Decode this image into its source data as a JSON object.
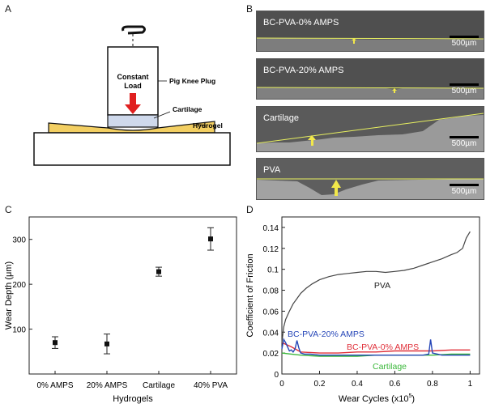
{
  "figure": {
    "panel_letters": {
      "a": "A",
      "b": "B",
      "c": "C",
      "d": "D"
    },
    "colors": {
      "force_arrow": "#e02020",
      "hydrogel": "#f3cf62",
      "cartilage": "#cfd9ec",
      "boundary": "#e8f060",
      "marker_arrow": "#f2e84a",
      "pva": "#444444",
      "bc20": "#2747b8",
      "bc0": "#e0303a",
      "cart": "#3cb83c"
    }
  },
  "panelA": {
    "constant_load": [
      "Constant",
      "Load"
    ],
    "pig_knee_plug": "Pig Knee Plug",
    "cartilage": "Cartilage",
    "hydrogel": "Hydrogel"
  },
  "panelB": {
    "images": [
      {
        "label": "BC-PVA-0% AMPS",
        "scale": "500µm"
      },
      {
        "label": "BC-PVA-20% AMPS",
        "scale": "500µm"
      },
      {
        "label": "Cartilage",
        "scale": "500µm"
      },
      {
        "label": "PVA",
        "scale": "500µm"
      }
    ]
  },
  "chart_data": [
    {
      "type": "scatter",
      "title": "",
      "xlabel": "Hydrogels",
      "ylabel": "Wear Depth (μm)",
      "categories": [
        "0% AMPS",
        "20% AMPS",
        "Cartilage",
        "40% PVA"
      ],
      "values": [
        70,
        67,
        228,
        301
      ],
      "errors": [
        13,
        22,
        10,
        25
      ],
      "ylim": [
        0,
        350
      ],
      "yticks": [
        100,
        200,
        300
      ]
    },
    {
      "type": "line",
      "title": "",
      "xlabel": "Wear Cycles (x10",
      "xlabel_sup": "5",
      "xlabel_end": ")",
      "ylabel": "Coefficient of Friction",
      "xlim": [
        0,
        1.05
      ],
      "ylim": [
        0,
        0.15
      ],
      "xticks": [
        "0",
        "0.2",
        "0.4",
        "0.6",
        "0.8",
        "1"
      ],
      "yticks": [
        "0",
        "0.02",
        "0.04",
        "0.06",
        "0.08",
        "0.1",
        "0.12",
        "0.14"
      ],
      "series": [
        {
          "name": "PVA",
          "color": "#444444",
          "x": [
            0,
            0.01,
            0.02,
            0.04,
            0.06,
            0.08,
            0.1,
            0.13,
            0.16,
            0.2,
            0.25,
            0.3,
            0.35,
            0.4,
            0.45,
            0.5,
            0.55,
            0.6,
            0.65,
            0.7,
            0.75,
            0.8,
            0.85,
            0.9,
            0.93,
            0.96,
            0.98,
            1.0
          ],
          "y": [
            0.03,
            0.045,
            0.052,
            0.06,
            0.067,
            0.072,
            0.077,
            0.082,
            0.086,
            0.09,
            0.093,
            0.095,
            0.096,
            0.097,
            0.098,
            0.098,
            0.097,
            0.098,
            0.099,
            0.101,
            0.104,
            0.107,
            0.11,
            0.114,
            0.116,
            0.12,
            0.13,
            0.136
          ]
        },
        {
          "name": "BC-PVA-20% AMPS",
          "color": "#2747b8",
          "x": [
            0,
            0.01,
            0.02,
            0.03,
            0.04,
            0.05,
            0.06,
            0.07,
            0.08,
            0.09,
            0.1,
            0.12,
            0.15,
            0.2,
            0.3,
            0.4,
            0.5,
            0.6,
            0.7,
            0.75,
            0.78,
            0.79,
            0.8,
            0.85,
            0.9,
            0.95,
            1.0
          ],
          "y": [
            0.024,
            0.033,
            0.03,
            0.026,
            0.022,
            0.023,
            0.021,
            0.024,
            0.032,
            0.025,
            0.02,
            0.019,
            0.019,
            0.018,
            0.018,
            0.018,
            0.018,
            0.018,
            0.018,
            0.018,
            0.019,
            0.033,
            0.02,
            0.018,
            0.018,
            0.018,
            0.018
          ]
        },
        {
          "name": "BC-PVA-0% AMPS",
          "color": "#e0303a",
          "x": [
            0,
            0.05,
            0.1,
            0.2,
            0.3,
            0.4,
            0.5,
            0.6,
            0.7,
            0.8,
            0.9,
            1.0
          ],
          "y": [
            0.03,
            0.026,
            0.021,
            0.02,
            0.02,
            0.021,
            0.021,
            0.022,
            0.022,
            0.022,
            0.023,
            0.023
          ]
        },
        {
          "name": "Cartilage",
          "color": "#3cb83c",
          "x": [
            0,
            0.05,
            0.1,
            0.2,
            0.3,
            0.4,
            0.5,
            0.6,
            0.7,
            0.8,
            0.9,
            1.0
          ],
          "y": [
            0.02,
            0.019,
            0.018,
            0.017,
            0.017,
            0.017,
            0.018,
            0.018,
            0.018,
            0.018,
            0.019,
            0.019
          ]
        }
      ],
      "annotations": [
        "PVA",
        "BC-PVA-20% AMPS",
        "BC-PVA-0% AMPS",
        "Cartilage"
      ]
    }
  ]
}
